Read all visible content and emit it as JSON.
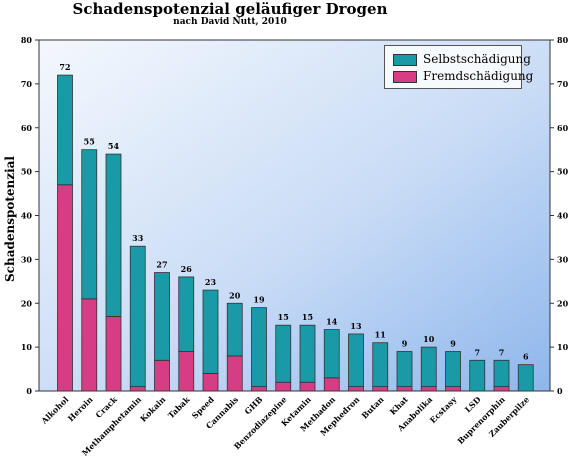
{
  "chart_data": {
    "type": "bar",
    "stacked": true,
    "title": "Schadenspotenzial geläufiger Drogen",
    "subtitle": "nach David Nutt, 2010",
    "ylabel": "Schadenspotenzial",
    "ylim": [
      0,
      80
    ],
    "yticks": [
      "0",
      "10",
      "20",
      "30",
      "40",
      "50",
      "60",
      "70",
      "80"
    ],
    "legend_position": "top-right",
    "categories": [
      "Alkohol",
      "Heroin",
      "Crack",
      "Methamphetamin",
      "Kokain",
      "Tabak",
      "Speed",
      "Cannabis",
      "GHB",
      "Benzodiazepine",
      "Ketamin",
      "Methadon",
      "Mephedron",
      "Butan",
      "Khat",
      "Anabolika",
      "Ecstasy",
      "LSD",
      "Buprenorphin",
      "Zauberpilze"
    ],
    "totals": [
      72,
      55,
      54,
      33,
      27,
      26,
      23,
      20,
      19,
      15,
      15,
      14,
      13,
      11,
      9,
      10,
      9,
      7,
      7,
      6
    ],
    "series": [
      {
        "name": "Fremdschädigung",
        "color": "#d63d84",
        "values": [
          47,
          21,
          17,
          1,
          7,
          9,
          4,
          8,
          1,
          2,
          2,
          3,
          1,
          1,
          1,
          1,
          1,
          0,
          1,
          0
        ]
      },
      {
        "name": "Selbstschädigung",
        "color": "#1a9aa7",
        "values": [
          25,
          34,
          37,
          32,
          20,
          17,
          19,
          12,
          18,
          13,
          13,
          11,
          12,
          10,
          8,
          9,
          8,
          7,
          6,
          6
        ]
      }
    ]
  }
}
